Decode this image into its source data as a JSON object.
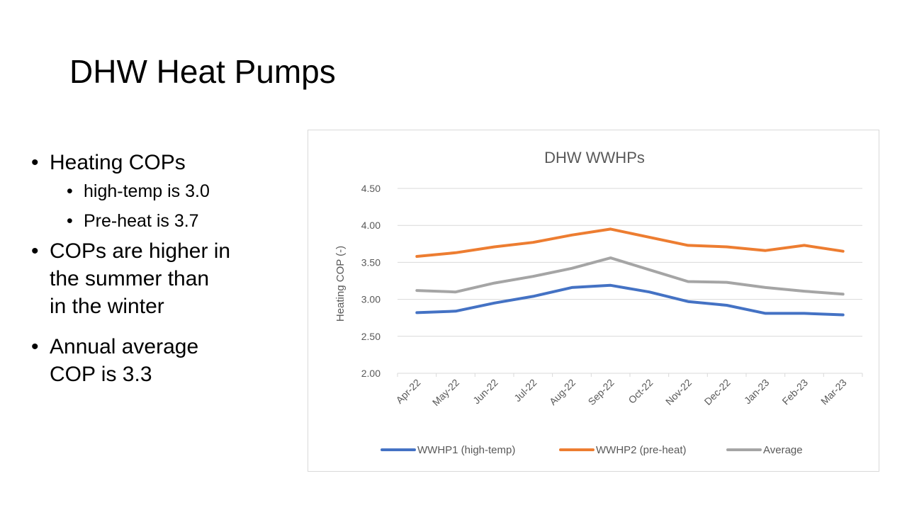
{
  "slide": {
    "title": "DHW Heat Pumps",
    "bullets": [
      {
        "text": "Heating COPs",
        "sub": [
          "high-temp is 3.0",
          "Pre-heat is 3.7"
        ]
      },
      {
        "lines": [
          "COPs are higher in",
          "the summer than",
          "in the winter"
        ]
      },
      {
        "lines": [
          "Annual average",
          "COP is 3.3"
        ]
      }
    ]
  },
  "chart_data": {
    "type": "line",
    "title": "DHW WWHPs",
    "ylabel": "Heating COP (-)",
    "xlabel": "",
    "ylim": [
      2.0,
      4.5
    ],
    "yticks": [
      "2.00",
      "2.50",
      "3.00",
      "3.50",
      "4.00",
      "4.50"
    ],
    "categories": [
      "Apr-22",
      "May-22",
      "Jun-22",
      "Jul-22",
      "Aug-22",
      "Sep-22",
      "Oct-22",
      "Nov-22",
      "Dec-22",
      "Jan-23",
      "Feb-23",
      "Mar-23"
    ],
    "grid": "horizontal",
    "legend_position": "bottom",
    "series": [
      {
        "name": "WWHP1 (high-temp)",
        "color": "#4472c4",
        "values": [
          2.82,
          2.84,
          2.95,
          3.04,
          3.16,
          3.19,
          3.1,
          2.97,
          2.92,
          2.81,
          2.81,
          2.79
        ]
      },
      {
        "name": "WWHP2 (pre-heat)",
        "color": "#ed7d31",
        "values": [
          3.58,
          3.63,
          3.71,
          3.77,
          3.87,
          3.95,
          3.84,
          3.73,
          3.71,
          3.66,
          3.73,
          3.65
        ]
      },
      {
        "name": "Average",
        "color": "#a5a5a5",
        "values": [
          3.12,
          3.1,
          3.22,
          3.31,
          3.42,
          3.56,
          3.4,
          3.24,
          3.23,
          3.16,
          3.11,
          3.07
        ]
      }
    ]
  }
}
